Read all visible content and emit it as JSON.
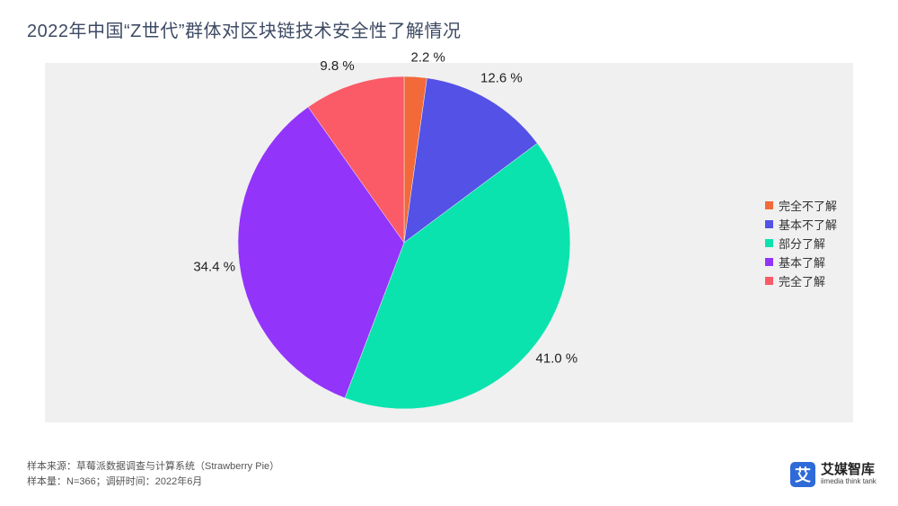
{
  "title": "2022年中国“Z世代”群体对区块链技术安全性了解情况",
  "chart_data": {
    "type": "pie",
    "title": "2022年中国“Z世代”群体对区块链技术安全性了解情况",
    "slices": [
      {
        "name": "完全不了解",
        "value": 2.2,
        "label": "2.2 %",
        "color": "#f2693a"
      },
      {
        "name": "基本不了解",
        "value": 12.6,
        "label": "12.6 %",
        "color": "#5451e6"
      },
      {
        "name": "部分了解",
        "value": 41.0,
        "label": "41.0 %",
        "color": "#0ae3ae"
      },
      {
        "name": "基本了解",
        "value": 34.4,
        "label": "34.4 %",
        "color": "#9334fa"
      },
      {
        "name": "完全了解",
        "value": 9.8,
        "label": "9.8 %",
        "color": "#fb5a67"
      }
    ],
    "legend_position": "right",
    "background": "#f0f0f0"
  },
  "footer": {
    "source": "样本来源：草莓派数据调查与计算系统（Strawberry Pie）",
    "sample": "样本量：N=366；调研时间：2022年6月"
  },
  "brand": {
    "icon_char": "艾",
    "name": "艾媒智库",
    "subtitle": "iimedia think tank",
    "color": "#2e6bd8"
  }
}
